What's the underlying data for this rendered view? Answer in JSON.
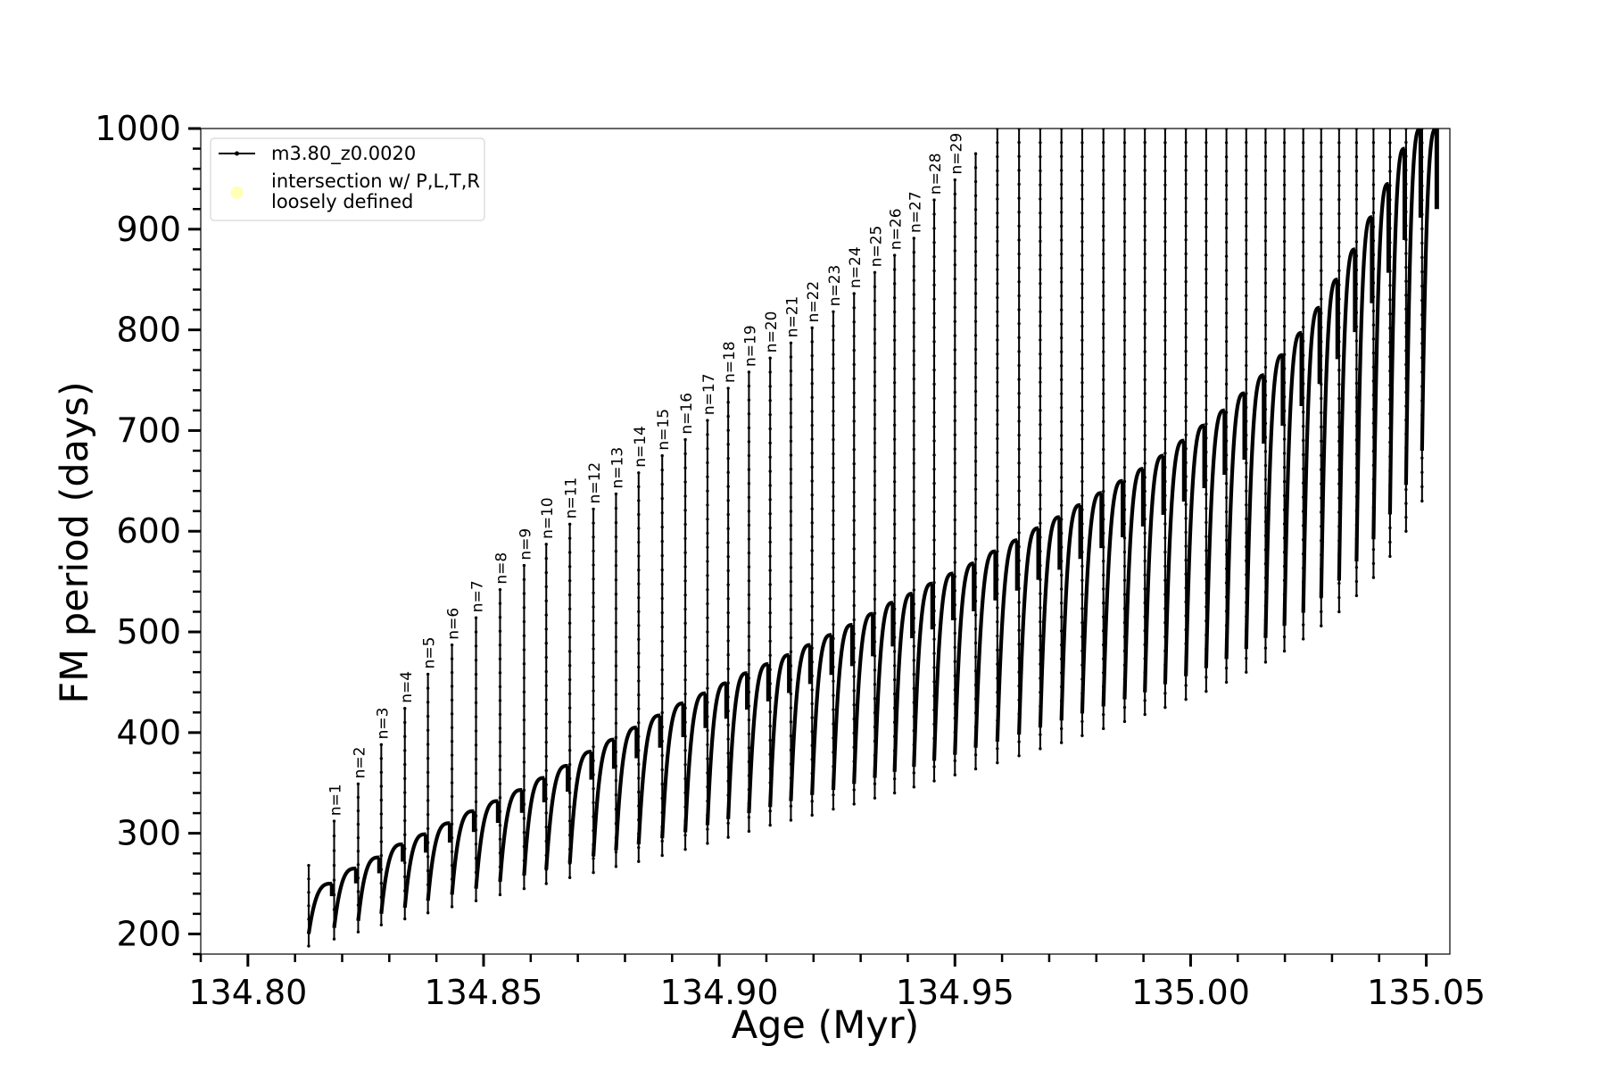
{
  "chart_data": {
    "type": "line",
    "xlabel": "Age (Myr)",
    "ylabel": "FM period (days)",
    "xlim": [
      134.79,
      135.055
    ],
    "ylim": [
      180,
      1000
    ],
    "x_ticks": [
      134.8,
      134.85,
      134.9,
      134.95,
      135.0,
      135.05
    ],
    "x_tick_labels": [
      "134.80",
      "134.85",
      "134.90",
      "134.95",
      "135.00",
      "135.05"
    ],
    "x_minor_step": 0.01,
    "y_ticks": [
      200,
      300,
      400,
      500,
      600,
      700,
      800,
      900,
      1000
    ],
    "y_tick_labels": [
      "200",
      "300",
      "400",
      "500",
      "600",
      "700",
      "800",
      "900",
      "1000"
    ],
    "y_minor_step": 20,
    "grid": false,
    "legend_position": "upper-left",
    "legend": [
      {
        "label": "m3.80_z0.0020",
        "marker": "line-dot",
        "color": "#000000"
      },
      {
        "label_lines": [
          "intersection w/ P,L,T,R",
          "loosely defined"
        ],
        "marker": "circle",
        "color": "#ffff99"
      }
    ],
    "series": [
      {
        "name": "m3.80_z0.0020",
        "color": "#000000",
        "pulses": [
          {
            "x": 134.8129,
            "base": 200,
            "peak": 250,
            "spike": 268,
            "low": 188
          },
          {
            "x": 134.8183,
            "base": 206,
            "peak": 265,
            "spike": 312,
            "low": 195,
            "label": "n=1"
          },
          {
            "x": 134.8234,
            "base": 213,
            "peak": 276,
            "spike": 349,
            "low": 202,
            "label": "n=2"
          },
          {
            "x": 134.8283,
            "base": 220,
            "peak": 289,
            "spike": 388,
            "low": 209,
            "label": "n=3"
          },
          {
            "x": 134.8333,
            "base": 226,
            "peak": 299,
            "spike": 424,
            "low": 215,
            "label": "n=4"
          },
          {
            "x": 134.8382,
            "base": 233,
            "peak": 310,
            "spike": 458,
            "low": 221,
            "label": "n=5"
          },
          {
            "x": 134.8433,
            "base": 239,
            "peak": 322,
            "spike": 487,
            "low": 227,
            "label": "n=6"
          },
          {
            "x": 134.8484,
            "base": 245,
            "peak": 332,
            "spike": 514,
            "low": 233,
            "label": "n=7"
          },
          {
            "x": 134.8535,
            "base": 252,
            "peak": 343,
            "spike": 542,
            "low": 239,
            "label": "n=8"
          },
          {
            "x": 134.8586,
            "base": 258,
            "peak": 355,
            "spike": 566,
            "low": 245,
            "label": "n=9"
          },
          {
            "x": 134.8633,
            "base": 264,
            "peak": 367,
            "spike": 587,
            "low": 250,
            "label": "n=10"
          },
          {
            "x": 134.8683,
            "base": 270,
            "peak": 381,
            "spike": 607,
            "low": 256,
            "label": "n=11"
          },
          {
            "x": 134.8733,
            "base": 277,
            "peak": 393,
            "spike": 622,
            "low": 261,
            "label": "n=12"
          },
          {
            "x": 134.8781,
            "base": 283,
            "peak": 405,
            "spike": 637,
            "low": 267,
            "label": "n=13"
          },
          {
            "x": 134.8829,
            "base": 289,
            "peak": 417,
            "spike": 658,
            "low": 272,
            "label": "n=14"
          },
          {
            "x": 134.8879,
            "base": 295,
            "peak": 429,
            "spike": 675,
            "low": 278,
            "label": "n=15"
          },
          {
            "x": 134.8928,
            "base": 301,
            "peak": 439,
            "spike": 691,
            "low": 284,
            "label": "n=16"
          },
          {
            "x": 134.8975,
            "base": 308,
            "peak": 449,
            "spike": 710,
            "low": 290,
            "label": "n=17"
          },
          {
            "x": 134.9019,
            "base": 314,
            "peak": 459,
            "spike": 742,
            "low": 296,
            "label": "n=18"
          },
          {
            "x": 134.9063,
            "base": 320,
            "peak": 468,
            "spike": 758,
            "low": 302,
            "label": "n=19"
          },
          {
            "x": 134.9108,
            "base": 326,
            "peak": 477,
            "spike": 772,
            "low": 308,
            "label": "n=20"
          },
          {
            "x": 134.9152,
            "base": 332,
            "peak": 487,
            "spike": 787,
            "low": 313,
            "label": "n=21"
          },
          {
            "x": 134.9197,
            "base": 338,
            "peak": 497,
            "spike": 802,
            "low": 318,
            "label": "n=22"
          },
          {
            "x": 134.9242,
            "base": 343,
            "peak": 507,
            "spike": 818,
            "low": 324,
            "label": "n=23"
          },
          {
            "x": 134.9286,
            "base": 349,
            "peak": 518,
            "spike": 836,
            "low": 329,
            "label": "n=24"
          },
          {
            "x": 134.933,
            "base": 355,
            "peak": 529,
            "spike": 857,
            "low": 335,
            "label": "n=25"
          },
          {
            "x": 134.9372,
            "base": 361,
            "peak": 538,
            "spike": 874,
            "low": 340,
            "label": "n=26"
          },
          {
            "x": 134.9413,
            "base": 366,
            "peak": 548,
            "spike": 891,
            "low": 346,
            "label": "n=27"
          },
          {
            "x": 134.9456,
            "base": 372,
            "peak": 558,
            "spike": 929,
            "low": 352,
            "label": "n=28"
          },
          {
            "x": 134.95,
            "base": 378,
            "peak": 568,
            "spike": 949,
            "low": 358,
            "label": "n=29"
          },
          {
            "x": 134.9544,
            "base": 385,
            "peak": 580,
            "spike": 975,
            "low": 364
          },
          {
            "x": 134.959,
            "base": 391,
            "peak": 591,
            "spike": 1000,
            "low": 370
          },
          {
            "x": 134.9636,
            "base": 398,
            "peak": 603,
            "spike": 1000,
            "low": 377
          },
          {
            "x": 134.9681,
            "base": 405,
            "peak": 614,
            "spike": 1000,
            "low": 384
          },
          {
            "x": 134.9726,
            "base": 412,
            "peak": 626,
            "spike": 1000,
            "low": 390
          },
          {
            "x": 134.977,
            "base": 419,
            "peak": 638,
            "spike": 1000,
            "low": 397
          },
          {
            "x": 134.9815,
            "base": 426,
            "peak": 650,
            "spike": 1000,
            "low": 404
          },
          {
            "x": 134.986,
            "base": 433,
            "peak": 662,
            "spike": 1000,
            "low": 411
          },
          {
            "x": 134.9903,
            "base": 440,
            "peak": 675,
            "spike": 1000,
            "low": 418
          },
          {
            "x": 134.9946,
            "base": 448,
            "peak": 690,
            "spike": 1000,
            "low": 425
          },
          {
            "x": 134.999,
            "base": 456,
            "peak": 705,
            "spike": 1000,
            "low": 433
          },
          {
            "x": 135.0033,
            "base": 464,
            "peak": 720,
            "spike": 1000,
            "low": 441
          },
          {
            "x": 135.0076,
            "base": 473,
            "peak": 737,
            "spike": 1000,
            "low": 450
          },
          {
            "x": 135.0118,
            "base": 483,
            "peak": 755,
            "spike": 1000,
            "low": 460
          },
          {
            "x": 135.0159,
            "base": 494,
            "peak": 775,
            "spike": 1000,
            "low": 470
          },
          {
            "x": 135.0199,
            "base": 506,
            "peak": 797,
            "spike": 1000,
            "low": 481
          },
          {
            "x": 135.0239,
            "base": 519,
            "peak": 822,
            "spike": 1000,
            "low": 493
          },
          {
            "x": 135.0277,
            "base": 534,
            "peak": 850,
            "spike": 1000,
            "low": 506
          },
          {
            "x": 135.0315,
            "base": 551,
            "peak": 880,
            "spike": 1000,
            "low": 520
          },
          {
            "x": 135.0352,
            "base": 570,
            "peak": 912,
            "spike": 1000,
            "low": 536
          },
          {
            "x": 135.0388,
            "base": 592,
            "peak": 945,
            "spike": 1000,
            "low": 554
          },
          {
            "x": 135.0423,
            "base": 617,
            "peak": 980,
            "spike": 1000,
            "low": 575
          },
          {
            "x": 135.0457,
            "base": 646,
            "peak": 1000,
            "spike": 1000,
            "low": 600
          },
          {
            "x": 135.0491,
            "base": 680,
            "peak": 1000,
            "spike": 1000,
            "low": 630
          }
        ]
      }
    ]
  }
}
